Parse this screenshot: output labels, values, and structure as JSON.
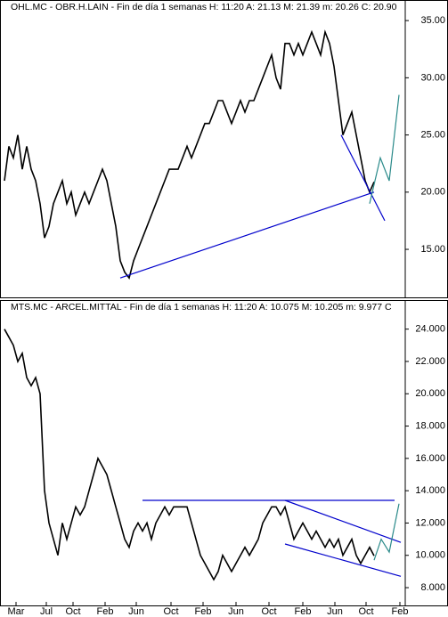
{
  "chart_data": [
    {
      "type": "line",
      "title": "OHL.MC - OBR.H.LAIN - Fin de día 1 semanas  H: 11:20  A: 21.13  M: 21.39  m: 20.26  C: 20.90",
      "color": "#000000",
      "values": [
        21,
        24,
        23,
        25,
        22,
        24,
        22,
        21,
        19,
        16,
        17,
        19,
        20,
        21,
        19,
        20,
        18,
        19,
        20,
        19,
        20,
        21,
        22,
        21,
        19,
        17,
        14,
        13,
        12.5,
        14,
        15,
        16,
        17,
        18,
        19,
        20,
        21,
        22,
        22,
        22,
        23,
        24,
        23,
        24,
        25,
        26,
        26,
        27,
        28,
        28,
        27,
        26,
        27,
        28,
        27,
        28,
        28,
        29,
        30,
        31,
        32,
        30,
        29,
        33,
        33,
        32,
        33,
        32,
        33,
        34,
        33,
        32,
        34,
        33,
        31,
        28,
        25,
        26,
        27,
        25,
        23,
        21,
        20,
        20.9
      ],
      "xlim": [
        -1,
        90
      ],
      "ylim": [
        10.8,
        36.8
      ],
      "yticks": [
        {
          "value": 15,
          "label": "15.00"
        },
        {
          "value": 20,
          "label": "20.00"
        },
        {
          "value": 25,
          "label": "25.00"
        },
        {
          "value": 30,
          "label": "30.00"
        },
        {
          "value": 35,
          "label": "35.00"
        }
      ],
      "trendlines": [
        {
          "color": "#0000cc",
          "points": [
            [
              26,
              12.5
            ],
            [
              83,
              20
            ]
          ]
        },
        {
          "color": "#0000cc",
          "points": [
            [
              75.6,
              25
            ],
            [
              85.4,
              17.5
            ]
          ]
        },
        {
          "color": "#2a8a8a",
          "points": [
            [
              82,
              19
            ],
            [
              84.4,
              23
            ],
            [
              86.4,
              21
            ],
            [
              88.6,
              28.5
            ]
          ]
        }
      ]
    },
    {
      "type": "line",
      "title": "MTS.MC - ARCEL.MITTAL - Fin de día 1 semanas  H: 11:20  A: 10.075  M: 10.205  m: 9.977  C",
      "color": "#000000",
      "values": [
        24,
        23.5,
        23,
        22,
        22.5,
        21,
        20.5,
        21,
        20,
        14,
        12,
        11,
        10,
        12,
        11,
        12,
        13,
        12.5,
        13,
        14,
        15,
        16,
        15.5,
        15,
        14,
        13,
        12,
        11,
        10.5,
        11.5,
        12,
        11.5,
        12,
        11,
        12,
        12.5,
        13,
        12.5,
        13,
        13,
        13,
        13,
        12,
        11,
        10,
        9.5,
        9,
        8.5,
        9,
        10,
        9.5,
        9,
        9.5,
        10,
        10.5,
        10,
        10.5,
        11,
        12,
        12.5,
        13,
        13,
        12.5,
        13,
        12,
        11,
        11.5,
        12,
        11.5,
        11,
        11.5,
        11,
        10.5,
        11,
        10.5,
        11,
        10,
        10.5,
        11,
        10,
        9.5,
        10,
        10.5,
        9.977
      ],
      "xlim": [
        -1,
        90
      ],
      "ylim": [
        6.9,
        25.8
      ],
      "yticks": [
        {
          "value": 8,
          "label": "8.000"
        },
        {
          "value": 10,
          "label": "10.000"
        },
        {
          "value": 12,
          "label": "12.000"
        },
        {
          "value": 14,
          "label": "14.000"
        },
        {
          "value": 16,
          "label": "16.000"
        },
        {
          "value": 18,
          "label": "18.000"
        },
        {
          "value": 20,
          "label": "20.000"
        },
        {
          "value": 22,
          "label": "22.000"
        },
        {
          "value": 24,
          "label": "24.000"
        }
      ],
      "xticks": [
        {
          "value": 2.6,
          "label": "Mar"
        },
        {
          "value": 9.4,
          "label": "Jul"
        },
        {
          "value": 15.4,
          "label": "Oct"
        },
        {
          "value": 22.6,
          "label": "Feb"
        },
        {
          "value": 29.6,
          "label": "Jun"
        },
        {
          "value": 37.4,
          "label": "Oct"
        },
        {
          "value": 44.6,
          "label": "Feb"
        },
        {
          "value": 52,
          "label": "Jun"
        },
        {
          "value": 59.4,
          "label": "Oct"
        },
        {
          "value": 67,
          "label": "Feb"
        },
        {
          "value": 74.2,
          "label": "Jun"
        },
        {
          "value": 81.2,
          "label": "Oct"
        },
        {
          "value": 88.8,
          "label": "Feb"
        }
      ],
      "trendlines": [
        {
          "color": "#0000cc",
          "points": [
            [
              31,
              13.4
            ],
            [
              87.6,
              13.4
            ]
          ]
        },
        {
          "color": "#0000cc",
          "points": [
            [
              63,
              13.4
            ],
            [
              89,
              10.8
            ]
          ]
        },
        {
          "color": "#0000cc",
          "points": [
            [
              63,
              10.7
            ],
            [
              89,
              8.7
            ]
          ]
        },
        {
          "color": "#2a8a8a",
          "points": [
            [
              83,
              9.7
            ],
            [
              84.6,
              11
            ],
            [
              86.4,
              10.2
            ],
            [
              88.6,
              13.2
            ]
          ]
        }
      ]
    }
  ]
}
